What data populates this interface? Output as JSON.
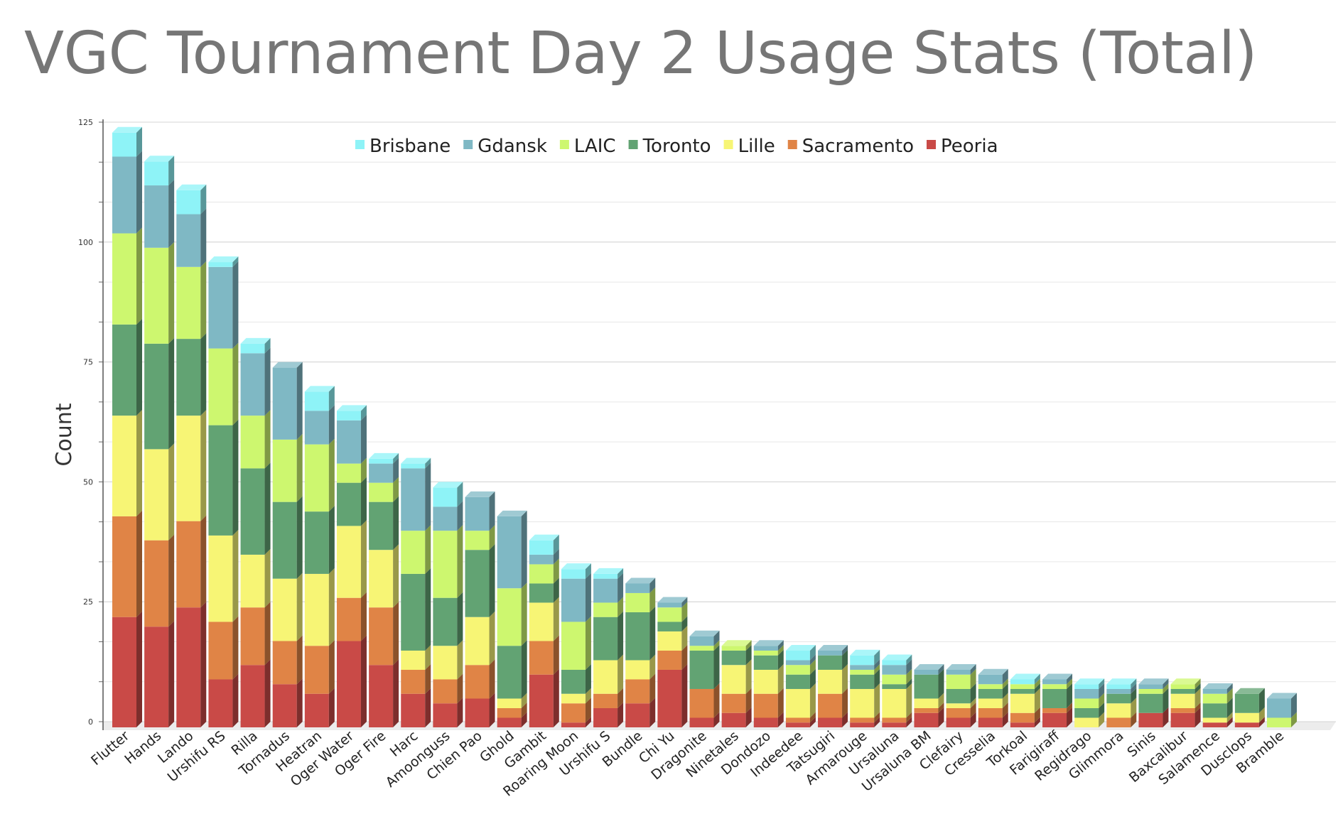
{
  "chart_data": {
    "type": "bar",
    "stacked": true,
    "style": "3d",
    "title": "VGC Tournament Day 2 Usage Stats (Total)",
    "xlabel": "",
    "ylabel": "Count",
    "ylim": [
      0,
      125
    ],
    "yticks": [
      0,
      25,
      50,
      75,
      100,
      125
    ],
    "grid": true,
    "legend_position": "top-center",
    "legend_order": [
      "Brisbane",
      "Gdansk",
      "LAIC",
      "Toronto",
      "Lille",
      "Sacramento",
      "Peoria"
    ],
    "categories": [
      "Flutter",
      "Hands",
      "Lando",
      "Urshifu RS",
      "Rilla",
      "Tornadus",
      "Heatran",
      "Oger Water",
      "Oger Fire",
      "Harc",
      "Amoonguss",
      "Chien Pao",
      "Ghold",
      "Gambit",
      "Roaring Moon",
      "Urshifu S",
      "Bundle",
      "Chi Yu",
      "Dragonite",
      "Ninetales",
      "Dondozo",
      "Indeedee",
      "Tatsugiri",
      "Armarouge",
      "Ursaluna",
      "Ursaluna BM",
      "Clefairy",
      "Cresselia",
      "Torkoal",
      "Farigiraff",
      "Regidrago",
      "Glimmora",
      "Sinis",
      "Baxcalibur",
      "Salamence",
      "Dusclops",
      "Bramble"
    ],
    "series": [
      {
        "name": "Peoria",
        "color": "#c94a47",
        "values": [
          23,
          21,
          25,
          10,
          13,
          9,
          7,
          18,
          13,
          7,
          5,
          6,
          2,
          11,
          1,
          4,
          5,
          12,
          2,
          3,
          2,
          1,
          2,
          1,
          1,
          3,
          2,
          2,
          1,
          3,
          0,
          0,
          3,
          3,
          1,
          1,
          0
        ]
      },
      {
        "name": "Sacramento",
        "color": "#e08446",
        "values": [
          21,
          18,
          18,
          12,
          12,
          9,
          10,
          9,
          12,
          5,
          5,
          7,
          2,
          7,
          4,
          3,
          5,
          4,
          6,
          4,
          5,
          1,
          5,
          1,
          1,
          1,
          2,
          2,
          2,
          1,
          0,
          2,
          0,
          1,
          0,
          0,
          0
        ]
      },
      {
        "name": "Lille",
        "color": "#f7f575",
        "values": [
          21,
          19,
          22,
          18,
          11,
          13,
          15,
          15,
          12,
          4,
          7,
          10,
          2,
          8,
          2,
          7,
          4,
          4,
          0,
          6,
          5,
          6,
          5,
          6,
          6,
          2,
          1,
          2,
          4,
          0,
          2,
          3,
          0,
          3,
          1,
          2,
          0
        ]
      },
      {
        "name": "Toronto",
        "color": "#62a373",
        "values": [
          19,
          22,
          16,
          23,
          18,
          16,
          13,
          9,
          10,
          16,
          10,
          14,
          11,
          4,
          5,
          9,
          10,
          2,
          8,
          3,
          3,
          3,
          3,
          3,
          1,
          5,
          3,
          2,
          1,
          4,
          2,
          2,
          4,
          1,
          3,
          4,
          0
        ]
      },
      {
        "name": "LAIC",
        "color": "#cdf76f",
        "values": [
          19,
          20,
          15,
          16,
          11,
          13,
          14,
          4,
          4,
          9,
          14,
          4,
          12,
          4,
          10,
          3,
          4,
          3,
          1,
          1,
          1,
          2,
          0,
          1,
          2,
          0,
          3,
          1,
          1,
          1,
          2,
          0,
          1,
          1,
          2,
          0,
          2
        ]
      },
      {
        "name": "Gdansk",
        "color": "#7fb8c4",
        "values": [
          16,
          13,
          11,
          17,
          13,
          15,
          7,
          9,
          4,
          13,
          5,
          7,
          15,
          2,
          9,
          5,
          2,
          1,
          2,
          0,
          1,
          1,
          1,
          1,
          2,
          1,
          1,
          2,
          0,
          1,
          2,
          1,
          1,
          0,
          1,
          0,
          4
        ]
      },
      {
        "name": "Brisbane",
        "color": "#8ef3f7",
        "values": [
          5,
          5,
          5,
          1,
          2,
          0,
          4,
          2,
          1,
          1,
          4,
          0,
          0,
          3,
          2,
          1,
          0,
          0,
          0,
          0,
          0,
          2,
          0,
          2,
          1,
          0,
          0,
          0,
          1,
          0,
          1,
          1,
          0,
          0,
          0,
          0,
          0
        ]
      }
    ]
  }
}
